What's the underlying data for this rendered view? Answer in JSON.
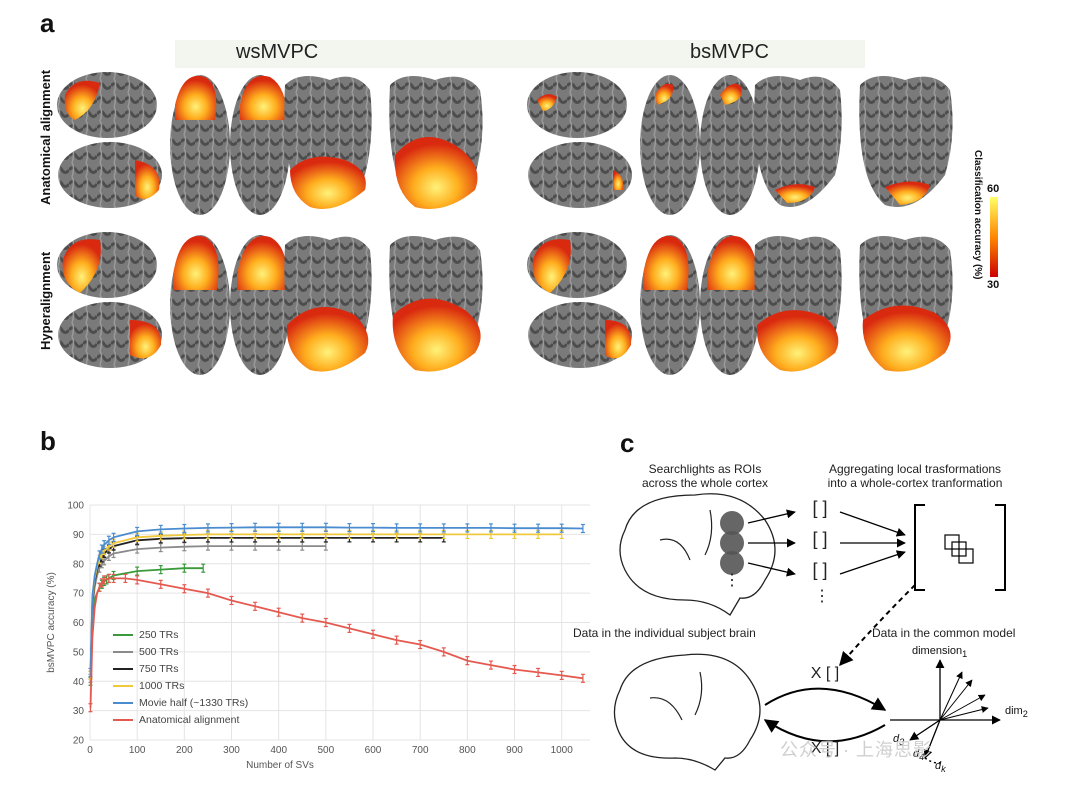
{
  "panel_a": {
    "letter": "a",
    "col_titles": [
      "wsMVPC",
      "bsMVPC"
    ],
    "row_labels": [
      "Anatomical alignment",
      "Hyperalignment"
    ],
    "colorbar": {
      "label": "Classification accuracy (%)",
      "max": "60",
      "min": "30",
      "colors": [
        "#ffff66",
        "#ff8800",
        "#cc0000"
      ]
    }
  },
  "panel_b": {
    "letter": "b",
    "legend": [
      "250 TRs",
      "500 TRs",
      "750 TRs",
      "1000 TRs",
      "Movie half (~1330 TRs)",
      "Anatomical alignment"
    ]
  },
  "panel_c": {
    "letter": "c",
    "title_left_1": "Searchlights as ROIs",
    "title_left_2": "across the whole cortex",
    "title_right_1": "Aggregating local trasformations",
    "title_right_2": "into a whole-cortex tranformation",
    "label_individual": "Data in the individual subject brain",
    "label_common": "Data in the common model",
    "dimension1": "dimension",
    "dimension1_sub": "1",
    "dim2": "dim",
    "dim2_sub": "2",
    "d3": "d",
    "d3_sub": "3",
    "d4": "d",
    "d4_sub": "4",
    "dk": "d",
    "dk_sub": "k",
    "bracket": "[ ]",
    "x_bracket": "X [ ]",
    "dots": "⋮"
  },
  "watermark": "公众号 · 上海思影",
  "chart_data": {
    "type": "line",
    "xlabel": "Number of SVs",
    "ylabel": "bsMVPC accuracy (%)",
    "xlim": [
      0,
      1060
    ],
    "ylim": [
      20,
      100
    ],
    "xticks": [
      0,
      100,
      200,
      300,
      400,
      500,
      600,
      700,
      800,
      900,
      1000
    ],
    "yticks": [
      20,
      30,
      40,
      50,
      60,
      70,
      80,
      90,
      100
    ],
    "grid": true,
    "legend_position": "bottom-left",
    "series": [
      {
        "name": "250 TRs",
        "color": "#3a9a3a",
        "x": [
          1,
          5,
          10,
          15,
          20,
          25,
          30,
          35,
          40,
          50,
          100,
          150,
          200,
          240
        ],
        "y": [
          40,
          62,
          68,
          70,
          72,
          73,
          74,
          74.5,
          75,
          76,
          77.5,
          78,
          78.5,
          78.5
        ]
      },
      {
        "name": "500 TRs",
        "color": "#8a8a8a",
        "x": [
          1,
          5,
          10,
          15,
          20,
          25,
          30,
          40,
          50,
          100,
          150,
          200,
          250,
          300,
          350,
          400,
          450,
          500
        ],
        "y": [
          41,
          65,
          72,
          76,
          78.5,
          80,
          81,
          82.5,
          83.5,
          85,
          85.5,
          85.8,
          86,
          86,
          86,
          86,
          86,
          86
        ]
      },
      {
        "name": "750 TRs",
        "color": "#222222",
        "x": [
          1,
          5,
          10,
          15,
          20,
          25,
          30,
          40,
          50,
          100,
          150,
          200,
          250,
          300,
          350,
          400,
          450,
          500,
          550,
          600,
          650,
          700,
          750
        ],
        "y": [
          42,
          67,
          74,
          78,
          80.5,
          82,
          83.5,
          85,
          86,
          88,
          88.5,
          88.7,
          88.8,
          88.8,
          88.8,
          88.8,
          88.8,
          88.8,
          88.8,
          88.8,
          88.8,
          88.8,
          88.8
        ]
      },
      {
        "name": "1000 TRs",
        "color": "#f0c83c",
        "x": [
          1,
          5,
          10,
          15,
          20,
          25,
          30,
          40,
          50,
          100,
          150,
          200,
          250,
          300,
          350,
          400,
          450,
          500,
          550,
          600,
          650,
          700,
          750,
          800,
          850,
          900,
          950,
          1000
        ],
        "y": [
          42,
          68,
          75,
          79,
          81.5,
          83,
          84.5,
          86,
          87,
          89,
          89.5,
          89.8,
          90,
          90,
          90,
          90,
          90,
          90,
          90,
          90,
          90,
          90,
          90,
          90,
          90,
          90,
          90,
          90
        ]
      },
      {
        "name": "Movie half (~1330 TRs)",
        "color": "#4a8ccf",
        "x": [
          1,
          5,
          10,
          15,
          20,
          25,
          30,
          40,
          50,
          100,
          150,
          200,
          250,
          300,
          350,
          400,
          450,
          500,
          550,
          600,
          650,
          700,
          750,
          800,
          850,
          900,
          950,
          1000,
          1045
        ],
        "y": [
          43,
          69,
          76,
          80,
          83,
          85,
          86.5,
          88,
          89,
          91,
          91.7,
          92,
          92.2,
          92.3,
          92.4,
          92.4,
          92.4,
          92.4,
          92.3,
          92.3,
          92.2,
          92.2,
          92.2,
          92.2,
          92.2,
          92.1,
          92.1,
          92.1,
          92
        ]
      },
      {
        "name": "Anatomical alignment",
        "color": "#e55a50",
        "x": [
          1,
          5,
          10,
          15,
          20,
          25,
          30,
          40,
          50,
          75,
          100,
          150,
          200,
          250,
          300,
          350,
          400,
          450,
          500,
          550,
          600,
          650,
          700,
          750,
          800,
          850,
          900,
          950,
          1000,
          1045
        ],
        "y": [
          31,
          55,
          65,
          70,
          72,
          73.5,
          74.5,
          75,
          75,
          75,
          74.5,
          73,
          71.5,
          70,
          67.5,
          65.5,
          63.5,
          61.5,
          60,
          58,
          56,
          54,
          52.5,
          50,
          47,
          45.5,
          44,
          43,
          42,
          41
        ]
      }
    ]
  }
}
